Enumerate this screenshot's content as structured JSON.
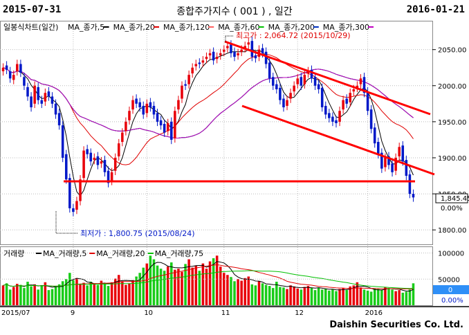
{
  "header": {
    "date_start": "2015-07-31",
    "date_end": "2016-01-21",
    "title": "종합주가지수 ( 001 ) , 일간"
  },
  "footer": {
    "company": "Daishin Securities Co. Ltd."
  },
  "colors": {
    "up": "#e8000a",
    "down": "#0018c8",
    "trend": "#ff0000",
    "vol_up": "#19cc19",
    "vol_down": "#e8000a",
    "info_box": "#2f8ff7"
  },
  "chart_data": [
    {
      "type": "candlestick",
      "legend_title": "일봉식차트(일간)",
      "legend": [
        {
          "name": "MA_종가,5",
          "color": "#000000"
        },
        {
          "name": "MA_종가,20",
          "color": "#e00000"
        },
        {
          "name": "MA_종가,120",
          "color": "#ff6060"
        },
        {
          "name": "MA_종가,60",
          "color": "#00c000"
        },
        {
          "name": "MA_종가,200",
          "color": "#0030c0"
        },
        {
          "name": "MA_종가,300",
          "color": "#c000c0"
        }
      ],
      "ylim": [
        1780,
        2090
      ],
      "y_ticks": [
        "2050.00",
        "2000.00",
        "1950.00",
        "1900.00",
        "1850.00",
        "1800.00"
      ],
      "x_ticks": [
        "2015/07",
        "9",
        "10",
        "11",
        "12",
        "2016"
      ],
      "annotations": {
        "high": "최고가 : 2,064.72 (2015/10/29)",
        "low": "최저가 : 1,800.75 (2015/08/24)"
      },
      "current_price": "1,845.45",
      "current_change": "0.00%",
      "closes": [
        2025,
        2022,
        2010,
        2015,
        2030,
        2018,
        2000,
        1985,
        1970,
        2000,
        1980,
        1975,
        1990,
        1985,
        1975,
        1960,
        1945,
        1900,
        1870,
        1830,
        1825,
        1840,
        1870,
        1910,
        1905,
        1895,
        1900,
        1890,
        1895,
        1880,
        1865,
        1880,
        1900,
        1920,
        1935,
        1950,
        1965,
        1980,
        1975,
        1970,
        1960,
        1975,
        1970,
        1960,
        1950,
        1945,
        1935,
        1948,
        1925,
        1965,
        1980,
        2000,
        2000,
        2015,
        2025,
        2030,
        2030,
        2035,
        2040,
        2045,
        2035,
        2040,
        2045,
        2050,
        2055,
        2045,
        2040,
        2045,
        2050,
        2055,
        2060,
        2040,
        2038,
        2050,
        2045,
        2030,
        2010,
        2000,
        1995,
        1980,
        1970,
        1980,
        1990,
        2000,
        2010,
        2000,
        2015,
        2020,
        2010,
        2000,
        1995,
        1970,
        1960,
        1955,
        1950,
        1948,
        1965,
        1980,
        1975,
        1990,
        1995,
        2000,
        2010,
        1990,
        1965,
        1940,
        1920,
        1905,
        1885,
        1900,
        1890,
        1880,
        1900,
        1915,
        1895,
        1875,
        1850,
        1845
      ],
      "opens": [
        2020,
        2028,
        2020,
        2008,
        2020,
        2030,
        2012,
        1998,
        1985,
        1975,
        1998,
        1980,
        1978,
        1992,
        1985,
        1975,
        1962,
        1945,
        1905,
        1872,
        1830,
        1828,
        1840,
        1872,
        1912,
        1907,
        1897,
        1902,
        1892,
        1897,
        1882,
        1868,
        1882,
        1902,
        1922,
        1937,
        1952,
        1967,
        1982,
        1977,
        1972,
        1962,
        1977,
        1972,
        1962,
        1952,
        1947,
        1937,
        1950,
        1927,
        1967,
        1982,
        2002,
        2002,
        2017,
        2027,
        2032,
        2032,
        2037,
        2042,
        2047,
        2037,
        2042,
        2047,
        2052,
        2057,
        2047,
        2042,
        2047,
        2052,
        2057,
        2062,
        2042,
        2040,
        2052,
        2047,
        2032,
        2012,
        2002,
        1997,
        1982,
        1972,
        1982,
        1992,
        2002,
        2012,
        2002,
        2017,
        2022,
        2012,
        2002,
        1997,
        1972,
        1962,
        1957,
        1952,
        1950,
        1967,
        1982,
        1977,
        1992,
        1997,
        2002,
        2012,
        1992,
        1967,
        1942,
        1922,
        1907,
        1887,
        1902,
        1892,
        1882,
        1902,
        1917,
        1897,
        1877,
        1850
      ],
      "vol_ylim": [
        0,
        110000
      ],
      "vol_ticks": [
        "100000",
        "50000"
      ],
      "vol_legend_title": "거래량",
      "vol_legend": [
        {
          "name": "MA_거래량,5",
          "color": "#000000"
        },
        {
          "name": "MA_거래량,20",
          "color": "#e00000"
        },
        {
          "name": "MA_거래량,75",
          "color": "#00c000"
        }
      ],
      "volumes": [
        38000,
        42000,
        30000,
        35000,
        41000,
        39000,
        33000,
        45000,
        36000,
        40000,
        30000,
        38000,
        44000,
        29000,
        31000,
        35000,
        40000,
        46000,
        50000,
        62000,
        48000,
        52000,
        41000,
        43000,
        38000,
        45000,
        40000,
        39000,
        47000,
        42000,
        37000,
        44000,
        51000,
        58000,
        46000,
        39000,
        42000,
        48000,
        55000,
        62000,
        72000,
        80000,
        95000,
        88000,
        76000,
        70000,
        66000,
        74000,
        82000,
        68000,
        70000,
        64000,
        79000,
        88000,
        72000,
        76000,
        66000,
        80000,
        70000,
        84000,
        90000,
        95000,
        74000,
        62000,
        58000,
        54000,
        46000,
        50000,
        47000,
        52000,
        55000,
        40000,
        38000,
        46000,
        42000,
        39000,
        37000,
        33000,
        45000,
        35000,
        34000,
        31000,
        38000,
        36000,
        32000,
        30000,
        35000,
        37000,
        33000,
        29000,
        34000,
        30000,
        32000,
        28000,
        30000,
        27000,
        31000,
        33000,
        29000,
        36000,
        38000,
        44000,
        34000,
        30000,
        28000,
        26000,
        32000,
        31000,
        29000,
        35000,
        33000,
        30000,
        27000,
        29000,
        24000,
        26000,
        30000,
        42000
      ],
      "vol_value": "0",
      "vol_change": "0.00%"
    }
  ]
}
